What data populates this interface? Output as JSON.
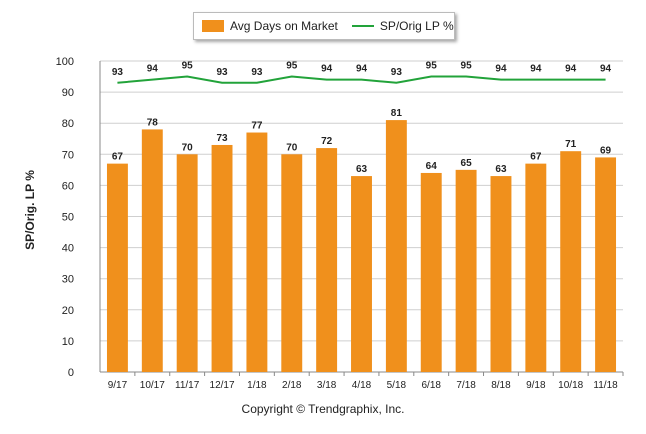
{
  "chart_data": {
    "type": "bar",
    "categories": [
      "9/17",
      "10/17",
      "11/17",
      "12/17",
      "1/18",
      "2/18",
      "3/18",
      "4/18",
      "5/18",
      "6/18",
      "7/18",
      "8/18",
      "9/18",
      "10/18",
      "11/18"
    ],
    "series": [
      {
        "name": "Avg Days on Market",
        "type": "bar",
        "color": "#f0901c",
        "values": [
          67,
          78,
          70,
          73,
          77,
          70,
          72,
          63,
          81,
          64,
          65,
          63,
          67,
          71,
          69
        ]
      },
      {
        "name": "SP/Orig LP %",
        "type": "line",
        "color": "#22a33a",
        "values": [
          93,
          94,
          95,
          93,
          93,
          95,
          94,
          94,
          93,
          95,
          95,
          94,
          94,
          94,
          94
        ]
      }
    ],
    "ylabel": "SP/Orig. LP %",
    "ylim": [
      0,
      100
    ],
    "yticks": [
      0,
      10,
      20,
      30,
      40,
      50,
      60,
      70,
      80,
      90,
      100
    ],
    "grid": true,
    "legend_position": "top-center"
  },
  "footer": {
    "copyright": "Copyright © Trendgraphix, Inc."
  }
}
